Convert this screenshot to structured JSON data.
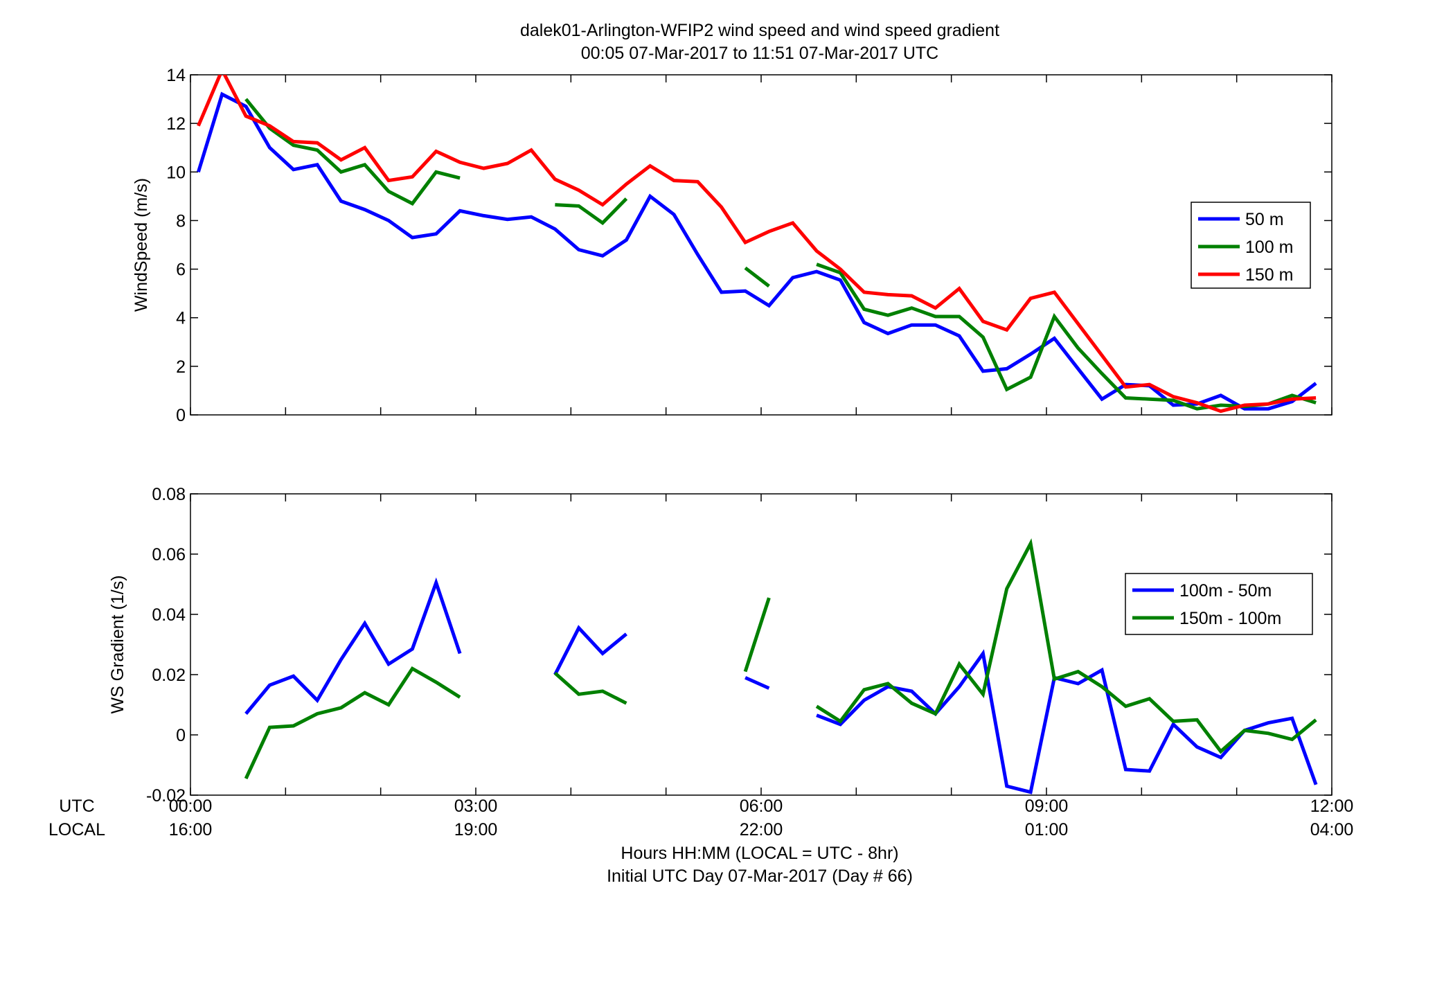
{
  "figure": {
    "title_line1": "dalek01-Arlington-WFIP2  wind speed and wind speed gradient",
    "title_line2": "00:05 07-Mar-2017 to 11:51 07-Mar-2017  UTC",
    "xlabel_line1": "Hours HH:MM  (LOCAL = UTC - 8hr)",
    "xlabel_line2": "Initial UTC Day 07-Mar-2017 (Day # 66)",
    "utc_label": "UTC",
    "local_label": "LOCAL",
    "x_ticks_utc": [
      "00:00",
      "03:00",
      "06:00",
      "09:00",
      "12:00"
    ],
    "x_ticks_local": [
      "16:00",
      "19:00",
      "22:00",
      "01:00",
      "04:00"
    ]
  },
  "chart_data": [
    {
      "type": "line",
      "ylabel": "WindSpeed (m/s)",
      "x_unit": "hours UTC",
      "xlim": [
        0,
        12
      ],
      "ylim": [
        0,
        14
      ],
      "yticks": [
        0,
        2,
        4,
        6,
        8,
        10,
        12,
        14
      ],
      "y_tick_labels": [
        "0",
        "2",
        "4",
        "6",
        "8",
        "10",
        "12",
        "14"
      ],
      "legend_position": "right",
      "series": [
        {
          "name": "50 m",
          "color": "#0000ff",
          "x": [
            0.083,
            0.333,
            0.583,
            0.833,
            1.083,
            1.333,
            1.583,
            1.833,
            2.083,
            2.333,
            2.583,
            2.833,
            3.083,
            3.333,
            3.583,
            3.833,
            4.083,
            4.333,
            4.583,
            4.833,
            5.083,
            5.333,
            5.583,
            5.833,
            6.083,
            6.333,
            6.583,
            6.833,
            7.083,
            7.333,
            7.583,
            7.833,
            8.083,
            8.333,
            8.583,
            8.833,
            9.083,
            9.333,
            9.583,
            9.833,
            10.083,
            10.333,
            10.583,
            10.833,
            11.083,
            11.333,
            11.583,
            11.833
          ],
          "y": [
            10.0,
            13.2,
            12.7,
            11.0,
            10.1,
            10.3,
            8.8,
            8.45,
            8.0,
            7.3,
            7.45,
            8.4,
            8.2,
            8.05,
            8.15,
            7.65,
            6.8,
            6.55,
            7.2,
            9.0,
            8.25,
            6.6,
            5.05,
            5.1,
            4.5,
            5.65,
            5.9,
            5.55,
            3.8,
            3.35,
            3.7,
            3.7,
            3.25,
            1.8,
            1.9,
            2.5,
            3.15,
            1.9,
            0.65,
            1.25,
            1.2,
            0.4,
            0.45,
            0.8,
            0.25,
            0.25,
            0.55,
            1.3
          ]
        },
        {
          "name": "100 m",
          "color": "#008000",
          "x": [
            0.583,
            0.833,
            1.083,
            1.333,
            1.583,
            1.833,
            2.083,
            2.333,
            2.583,
            2.833,
            3.083,
            3.333,
            3.583,
            3.833,
            4.083,
            4.333,
            4.583,
            4.833,
            5.083,
            5.333,
            5.583,
            5.833,
            6.083,
            6.333,
            6.583,
            6.833,
            7.083,
            7.333,
            7.583,
            7.833,
            8.083,
            8.333,
            8.583,
            8.833,
            9.083,
            9.333,
            9.583,
            9.833,
            10.083,
            10.333,
            10.583,
            10.833,
            11.083,
            11.333,
            11.583,
            11.833
          ],
          "y": [
            13.0,
            11.8,
            11.1,
            10.9,
            10.0,
            10.3,
            9.2,
            8.7,
            10.0,
            9.75,
            null,
            null,
            null,
            8.65,
            8.6,
            7.9,
            8.9,
            null,
            null,
            null,
            null,
            6.05,
            5.3,
            null,
            6.2,
            5.85,
            4.35,
            4.1,
            4.4,
            4.05,
            4.05,
            3.2,
            1.05,
            1.55,
            4.05,
            2.75,
            1.7,
            0.7,
            0.65,
            0.6,
            0.25,
            0.4,
            0.35,
            0.45,
            0.8,
            0.5
          ]
        },
        {
          "name": "150 m",
          "color": "#ff0000",
          "x": [
            0.083,
            0.333,
            0.583,
            0.833,
            1.083,
            1.333,
            1.583,
            1.833,
            2.083,
            2.333,
            2.583,
            2.833,
            3.083,
            3.333,
            3.583,
            3.833,
            4.083,
            4.333,
            4.583,
            4.833,
            5.083,
            5.333,
            5.583,
            5.833,
            6.083,
            6.333,
            6.583,
            6.833,
            7.083,
            7.333,
            7.583,
            7.833,
            8.083,
            8.333,
            8.583,
            8.833,
            9.083,
            9.333,
            9.583,
            9.833,
            10.083,
            10.333,
            10.583,
            10.833,
            11.083,
            11.333,
            11.583,
            11.833
          ],
          "y": [
            11.9,
            14.2,
            12.3,
            11.9,
            11.25,
            11.2,
            10.5,
            11.0,
            9.65,
            9.8,
            10.85,
            10.4,
            10.15,
            10.35,
            10.9,
            9.7,
            9.25,
            8.65,
            9.5,
            10.25,
            9.65,
            9.6,
            8.55,
            7.1,
            7.55,
            7.9,
            6.75,
            6.0,
            5.05,
            4.95,
            4.9,
            4.4,
            5.2,
            3.85,
            3.5,
            4.8,
            5.05,
            3.75,
            2.45,
            1.15,
            1.25,
            0.75,
            0.5,
            0.15,
            0.4,
            0.45,
            0.65,
            0.7
          ]
        }
      ]
    },
    {
      "type": "line",
      "ylabel": "WS Gradient (1/s)",
      "x_unit": "hours UTC",
      "xlim": [
        0,
        12
      ],
      "ylim": [
        -0.02,
        0.08
      ],
      "yticks": [
        -0.02,
        0,
        0.02,
        0.04,
        0.06,
        0.08
      ],
      "y_tick_labels": [
        "-0.02",
        "0",
        "0.02",
        "0.04",
        "0.06",
        "0.08"
      ],
      "legend_position": "right",
      "series": [
        {
          "name": "100m - 50m",
          "color": "#0000ff",
          "x": [
            0.583,
            0.833,
            1.083,
            1.333,
            1.583,
            1.833,
            2.083,
            2.333,
            2.583,
            2.833,
            3.083,
            3.333,
            3.583,
            3.833,
            4.083,
            4.333,
            4.583,
            4.833,
            5.083,
            5.333,
            5.583,
            5.833,
            6.083,
            6.333,
            6.583,
            6.833,
            7.083,
            7.333,
            7.583,
            7.833,
            8.083,
            8.333,
            8.583,
            8.833,
            9.083,
            9.333,
            9.583,
            9.833,
            10.083,
            10.333,
            10.583,
            10.833,
            11.083,
            11.333,
            11.583,
            11.833
          ],
          "y": [
            0.007,
            0.0165,
            0.0195,
            0.0115,
            0.025,
            0.037,
            0.0235,
            0.0285,
            0.0505,
            0.027,
            null,
            null,
            null,
            0.02,
            0.0355,
            0.027,
            0.0335,
            null,
            null,
            null,
            null,
            0.019,
            0.0155,
            null,
            0.0065,
            0.0035,
            0.0115,
            0.016,
            0.0145,
            0.007,
            0.016,
            0.027,
            -0.017,
            -0.019,
            0.019,
            0.017,
            0.0215,
            -0.0115,
            -0.012,
            0.0035,
            -0.004,
            -0.0075,
            0.0015,
            0.004,
            0.0055,
            -0.0165
          ]
        },
        {
          "name": "150m - 100m",
          "color": "#008000",
          "x": [
            0.583,
            0.833,
            1.083,
            1.333,
            1.583,
            1.833,
            2.083,
            2.333,
            2.583,
            2.833,
            3.083,
            3.333,
            3.583,
            3.833,
            4.083,
            4.333,
            4.583,
            4.833,
            5.083,
            5.333,
            5.583,
            5.833,
            6.083,
            6.333,
            6.583,
            6.833,
            7.083,
            7.333,
            7.583,
            7.833,
            8.083,
            8.333,
            8.583,
            8.833,
            9.083,
            9.333,
            9.583,
            9.833,
            10.083,
            10.333,
            10.583,
            10.833,
            11.083,
            11.333,
            11.583,
            11.833
          ],
          "y": [
            -0.0145,
            0.0025,
            0.003,
            0.007,
            0.009,
            0.014,
            0.01,
            0.022,
            0.0175,
            0.0125,
            null,
            null,
            null,
            0.0205,
            0.0135,
            0.0145,
            0.0105,
            null,
            null,
            null,
            null,
            0.021,
            0.0455,
            null,
            0.0095,
            0.0045,
            0.015,
            0.017,
            0.0105,
            0.007,
            0.0235,
            0.0135,
            0.0485,
            0.0635,
            0.0185,
            0.021,
            0.016,
            0.0095,
            0.012,
            0.0045,
            0.005,
            -0.0055,
            0.0015,
            0.0005,
            -0.0015,
            0.005
          ]
        }
      ]
    }
  ]
}
